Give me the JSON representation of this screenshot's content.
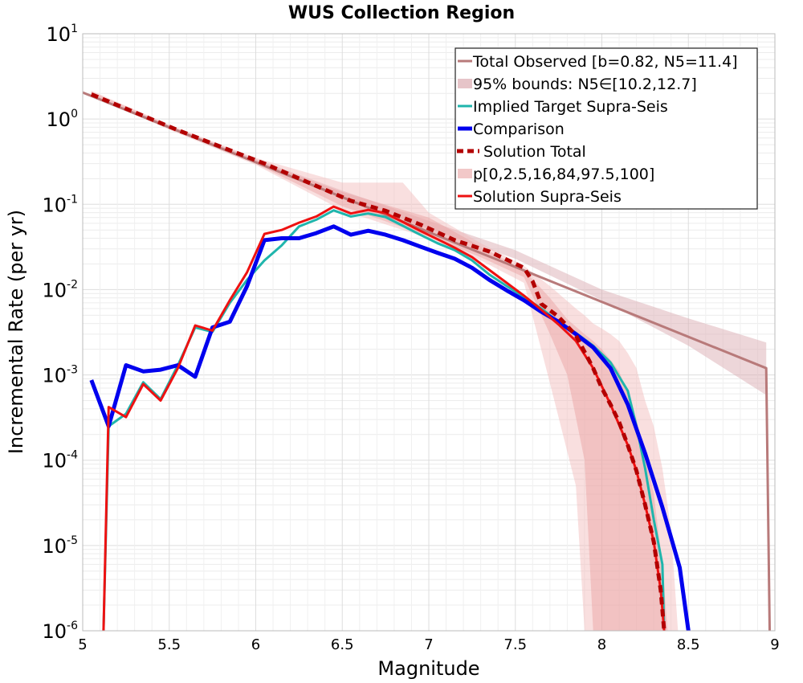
{
  "chart_data": {
    "type": "line",
    "title": "WUS Collection Region",
    "xlabel": "Magnitude",
    "ylabel": "Incremental Rate (per yr)",
    "xlim": [
      5,
      9
    ],
    "ylim": [
      1e-06,
      10
    ],
    "yscale": "log",
    "grid": true,
    "legend_position": "top-right",
    "x_ticks": [
      "5",
      "5.5",
      "6",
      "6.5",
      "7",
      "7.5",
      "8",
      "8.5",
      "9"
    ],
    "y_ticks": [
      {
        "base": "10",
        "exp": "-6"
      },
      {
        "base": "10",
        "exp": "-5"
      },
      {
        "base": "10",
        "exp": "-4"
      },
      {
        "base": "10",
        "exp": "-3"
      },
      {
        "base": "10",
        "exp": "-2"
      },
      {
        "base": "10",
        "exp": "-1"
      },
      {
        "base": "10",
        "exp": "0"
      },
      {
        "base": "10",
        "exp": "1"
      }
    ],
    "legend": [
      {
        "label": "Total Observed [b=0.82, N5=11.4]",
        "color": "#b87a7a",
        "style": "solid",
        "kind": "line"
      },
      {
        "label": "95% bounds: N5∈[10.2,12.7]",
        "color": "#e6c4c8",
        "style": "solid",
        "kind": "band"
      },
      {
        "label": "Implied Target Supra-Seis",
        "color": "#1fb5ac",
        "style": "solid",
        "kind": "line"
      },
      {
        "label": "Comparison",
        "color": "#0000ee",
        "style": "solid",
        "kind": "line"
      },
      {
        "label": "Solution Total",
        "color": "#b30000",
        "style": "dashed",
        "kind": "line"
      },
      {
        "label": "p[0,2.5,16,84,97.5,100]",
        "color": "#f2c8c8",
        "style": "solid",
        "kind": "band"
      },
      {
        "label": "Solution Supra-Seis",
        "color": "#ee1111",
        "style": "solid",
        "kind": "line"
      }
    ],
    "bands": [
      {
        "name": "95% bounds: N5∈[10.2,12.7]",
        "color": "#dcaeb4",
        "opacity": 0.5,
        "x": [
          5.0,
          5.5,
          6.0,
          6.5,
          7.0,
          7.5,
          8.0,
          8.5,
          8.95
        ],
        "lower": [
          2.0,
          0.78,
          0.3,
          0.12,
          0.052,
          0.023,
          0.0075,
          0.0022,
          0.00058
        ],
        "upper": [
          2.1,
          0.84,
          0.34,
          0.145,
          0.064,
          0.029,
          0.01,
          0.0046,
          0.0024
        ]
      },
      {
        "name": "p[0,2.5,16,84,97.5,100] outer",
        "color": "#f2b8b8",
        "opacity": 0.45,
        "x": [
          5.05,
          5.5,
          6.0,
          6.5,
          6.85,
          7.0,
          7.3,
          7.55,
          7.7,
          7.85,
          7.9,
          7.95,
          8.0,
          8.05,
          8.1,
          8.15,
          8.2,
          8.25,
          8.3,
          8.35,
          8.4,
          8.44
        ],
        "lower": [
          1.9,
          0.75,
          0.29,
          0.085,
          0.05,
          0.04,
          0.022,
          0.012,
          0.0008,
          5e-05,
          1e-06,
          1e-06,
          1e-06,
          1e-06,
          1e-06,
          1e-06,
          1e-06,
          1e-06,
          1e-06,
          1e-06,
          1e-06,
          1e-06
        ],
        "upper": [
          2.15,
          0.86,
          0.35,
          0.18,
          0.18,
          0.08,
          0.035,
          0.019,
          0.011,
          0.006,
          0.005,
          0.004,
          0.0035,
          0.003,
          0.0025,
          0.0018,
          0.0012,
          0.0005,
          0.00025,
          8e-05,
          1.5e-05,
          1e-06
        ]
      },
      {
        "name": "p[0,2.5,16,84,97.5,100] inner",
        "color": "#e8a0a0",
        "opacity": 0.45,
        "x": [
          5.05,
          5.5,
          6.0,
          6.5,
          7.0,
          7.3,
          7.55,
          7.7,
          7.8,
          7.9,
          7.95,
          8.0,
          8.05,
          8.1,
          8.15,
          8.2,
          8.25,
          8.3,
          8.35,
          8.38
        ],
        "lower": [
          1.95,
          0.78,
          0.3,
          0.095,
          0.042,
          0.024,
          0.014,
          0.003,
          0.001,
          0.0001,
          1e-06,
          1e-06,
          1e-06,
          1e-06,
          1e-06,
          1e-06,
          1e-06,
          1e-06,
          1e-06,
          1e-06
        ],
        "upper": [
          2.1,
          0.84,
          0.33,
          0.14,
          0.07,
          0.032,
          0.017,
          0.008,
          0.0045,
          0.003,
          0.0025,
          0.002,
          0.0015,
          0.0011,
          0.0006,
          0.0003,
          0.00012,
          4e-05,
          6e-06,
          1e-06
        ]
      }
    ],
    "series": [
      {
        "name": "Total Observed [b=0.82, N5=11.4]",
        "color": "#b87a7a",
        "width": 3,
        "dash": "",
        "points": [
          [
            5.0,
            2.05
          ],
          [
            8.95,
            0.0012
          ],
          [
            8.97,
            1e-06
          ]
        ]
      },
      {
        "name": "Implied Target Supra-Seis",
        "color": "#1fb5ac",
        "width": 3,
        "dash": "",
        "points": [
          [
            5.12,
            1e-06
          ],
          [
            5.15,
            0.00025
          ],
          [
            5.25,
            0.00035
          ],
          [
            5.35,
            0.00082
          ],
          [
            5.45,
            0.00052
          ],
          [
            5.55,
            0.0013
          ],
          [
            5.65,
            0.0036
          ],
          [
            5.75,
            0.0032
          ],
          [
            5.85,
            0.007
          ],
          [
            5.95,
            0.013
          ],
          [
            6.05,
            0.022
          ],
          [
            6.15,
            0.033
          ],
          [
            6.25,
            0.055
          ],
          [
            6.35,
            0.066
          ],
          [
            6.45,
            0.085
          ],
          [
            6.55,
            0.072
          ],
          [
            6.65,
            0.078
          ],
          [
            6.75,
            0.071
          ],
          [
            6.85,
            0.056
          ],
          [
            6.95,
            0.044
          ],
          [
            7.05,
            0.035
          ],
          [
            7.15,
            0.029
          ],
          [
            7.25,
            0.022
          ],
          [
            7.35,
            0.015
          ],
          [
            7.45,
            0.011
          ],
          [
            7.55,
            0.0082
          ],
          [
            7.65,
            0.006
          ],
          [
            7.75,
            0.0042
          ],
          [
            7.85,
            0.0031
          ],
          [
            7.95,
            0.0022
          ],
          [
            8.05,
            0.0014
          ],
          [
            8.15,
            0.00065
          ],
          [
            8.2,
            0.00025
          ],
          [
            8.25,
            8e-05
          ],
          [
            8.3,
            2e-05
          ],
          [
            8.35,
            6e-06
          ],
          [
            8.36,
            1e-06
          ]
        ]
      },
      {
        "name": "Comparison",
        "color": "#0000ee",
        "width": 5,
        "dash": "",
        "points": [
          [
            5.05,
            0.00087
          ],
          [
            5.15,
            0.00025
          ],
          [
            5.25,
            0.0013
          ],
          [
            5.35,
            0.0011
          ],
          [
            5.45,
            0.00115
          ],
          [
            5.55,
            0.0013
          ],
          [
            5.65,
            0.00095
          ],
          [
            5.75,
            0.0036
          ],
          [
            5.85,
            0.0042
          ],
          [
            5.95,
            0.011
          ],
          [
            6.05,
            0.038
          ],
          [
            6.15,
            0.04
          ],
          [
            6.25,
            0.04
          ],
          [
            6.35,
            0.046
          ],
          [
            6.45,
            0.055
          ],
          [
            6.55,
            0.044
          ],
          [
            6.65,
            0.049
          ],
          [
            6.75,
            0.044
          ],
          [
            6.85,
            0.038
          ],
          [
            6.95,
            0.032
          ],
          [
            7.05,
            0.027
          ],
          [
            7.15,
            0.023
          ],
          [
            7.25,
            0.018
          ],
          [
            7.35,
            0.013
          ],
          [
            7.45,
            0.0098
          ],
          [
            7.55,
            0.0075
          ],
          [
            7.65,
            0.0055
          ],
          [
            7.75,
            0.0042
          ],
          [
            7.85,
            0.003
          ],
          [
            7.95,
            0.0021
          ],
          [
            8.05,
            0.0012
          ],
          [
            8.15,
            0.00045
          ],
          [
            8.25,
            0.00012
          ],
          [
            8.35,
            2.8e-05
          ],
          [
            8.45,
            5.5e-06
          ],
          [
            8.5,
            1e-06
          ]
        ]
      },
      {
        "name": "Solution Supra-Seis",
        "color": "#ee1111",
        "width": 3,
        "dash": "",
        "points": [
          [
            5.12,
            1e-06
          ],
          [
            5.15,
            0.00042
          ],
          [
            5.25,
            0.00032
          ],
          [
            5.35,
            0.00078
          ],
          [
            5.45,
            0.0005
          ],
          [
            5.55,
            0.0012
          ],
          [
            5.65,
            0.0038
          ],
          [
            5.75,
            0.0033
          ],
          [
            5.85,
            0.0075
          ],
          [
            5.95,
            0.016
          ],
          [
            6.05,
            0.045
          ],
          [
            6.15,
            0.05
          ],
          [
            6.25,
            0.061
          ],
          [
            6.35,
            0.072
          ],
          [
            6.45,
            0.094
          ],
          [
            6.55,
            0.078
          ],
          [
            6.65,
            0.086
          ],
          [
            6.75,
            0.079
          ],
          [
            6.85,
            0.062
          ],
          [
            6.95,
            0.049
          ],
          [
            7.05,
            0.039
          ],
          [
            7.15,
            0.031
          ],
          [
            7.25,
            0.024
          ],
          [
            7.35,
            0.017
          ],
          [
            7.45,
            0.012
          ],
          [
            7.55,
            0.0085
          ],
          [
            7.65,
            0.0058
          ],
          [
            7.75,
            0.0039
          ],
          [
            7.85,
            0.0025
          ],
          [
            7.95,
            0.0012
          ],
          [
            8.05,
            0.00045
          ],
          [
            8.15,
            0.00015
          ],
          [
            8.2,
            7.5e-05
          ],
          [
            8.25,
            3e-05
          ],
          [
            8.3,
            1.1e-05
          ],
          [
            8.34,
            3e-06
          ],
          [
            8.36,
            1e-06
          ]
        ]
      },
      {
        "name": "Solution Total",
        "color": "#b30000",
        "width": 5,
        "dash": "9,6",
        "points": [
          [
            5.05,
            1.95
          ],
          [
            5.55,
            0.74
          ],
          [
            6.05,
            0.3
          ],
          [
            6.55,
            0.11
          ],
          [
            6.75,
            0.084
          ],
          [
            6.95,
            0.058
          ],
          [
            7.15,
            0.038
          ],
          [
            7.35,
            0.028
          ],
          [
            7.55,
            0.018
          ],
          [
            7.6,
            0.0125
          ],
          [
            7.65,
            0.0068
          ],
          [
            7.75,
            0.0048
          ],
          [
            7.85,
            0.0029
          ],
          [
            7.95,
            0.0012
          ],
          [
            8.0,
            0.0007
          ],
          [
            8.05,
            0.00045
          ],
          [
            8.1,
            0.00028
          ],
          [
            8.15,
            0.00015
          ],
          [
            8.2,
            7.5e-05
          ],
          [
            8.25,
            3e-05
          ],
          [
            8.3,
            1.1e-05
          ],
          [
            8.34,
            3e-06
          ],
          [
            8.36,
            1e-06
          ]
        ]
      }
    ]
  }
}
